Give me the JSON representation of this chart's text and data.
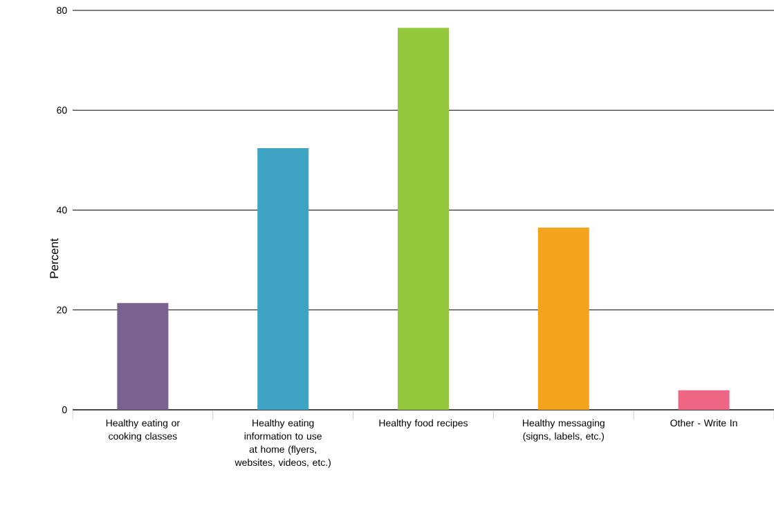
{
  "chart_data": {
    "type": "bar",
    "ylabel": "Percent",
    "categories": [
      "Healthy eating or cooking classes",
      "Healthy eating information to use at home (flyers, websites, videos, etc.)",
      "Healthy food recipes",
      "Healthy messaging (signs, labels, etc.)",
      "Other - Write In"
    ],
    "values": [
      21.4,
      52.4,
      76.5,
      36.5,
      3.9
    ],
    "colors": [
      "#7b6190",
      "#3fa3c3",
      "#94c83d",
      "#f4a41c",
      "#ef6584"
    ],
    "ylim": [
      0,
      80
    ],
    "yticks": [
      0,
      20,
      40,
      60,
      80
    ],
    "grid": "y"
  }
}
